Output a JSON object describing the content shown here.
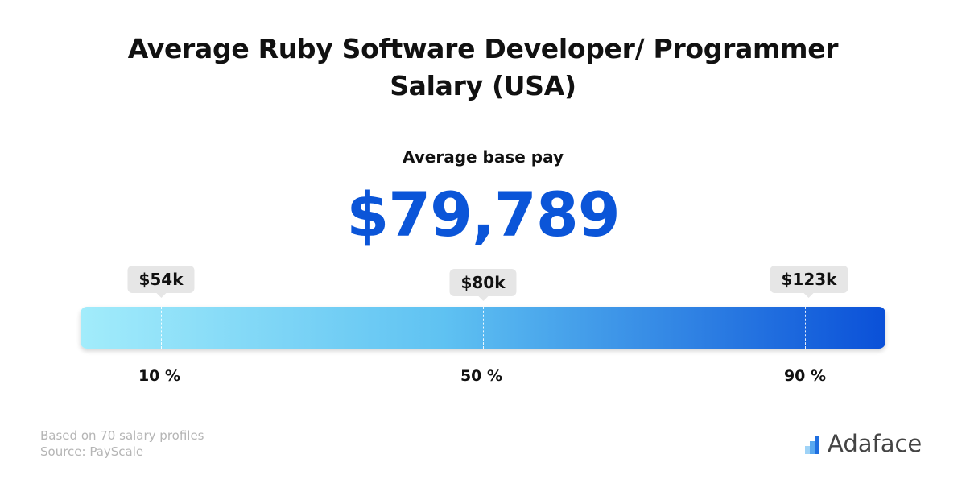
{
  "title": "Average Ruby Software Developer/ Programmer Salary (USA)",
  "label": "Average base pay",
  "amount": "$79,789",
  "markers": [
    {
      "value": "$54k",
      "percentile": "10 %"
    },
    {
      "value": "$80k",
      "percentile": "50 %"
    },
    {
      "value": "$123k",
      "percentile": "90 %"
    }
  ],
  "footer": {
    "profiles": "Based on 70 salary profiles",
    "source": "Source: PayScale"
  },
  "brand": "Adaface"
}
